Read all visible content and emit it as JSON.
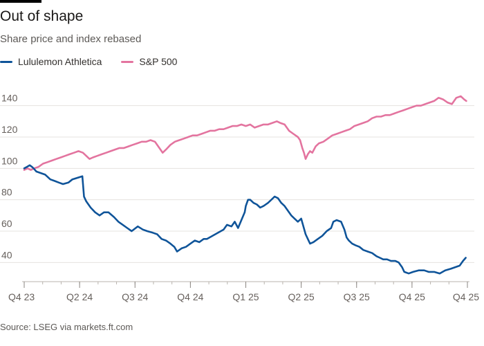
{
  "header": {
    "title": "Out of shape",
    "subtitle": "Share price and index rebased"
  },
  "legend": [
    {
      "label": "Lululemon Athletica",
      "color": "#0f5499"
    },
    {
      "label": "S&P 500",
      "color": "#e3749f"
    }
  ],
  "footer": {
    "source": "Source: LSEG via markets.ft.com"
  },
  "chart_data": {
    "type": "line",
    "title": "Out of shape",
    "subtitle": "Share price and index rebased",
    "xlabel": "",
    "ylabel": "",
    "x_unit": "quarter index (0 = Q4 23)",
    "xlim": [
      0,
      8
    ],
    "ylim": [
      30,
      150
    ],
    "yticks": [
      40,
      60,
      80,
      100,
      120,
      140
    ],
    "xticks": [
      {
        "x": 0,
        "label": "Q4 23"
      },
      {
        "x": 1,
        "label": "Q2 24"
      },
      {
        "x": 2,
        "label": "Q3 24"
      },
      {
        "x": 3,
        "label": "Q4 24"
      },
      {
        "x": 4,
        "label": "Q1 25"
      },
      {
        "x": 5,
        "label": "Q2 25"
      },
      {
        "x": 6,
        "label": "Q3 25"
      },
      {
        "x": 7,
        "label": "Q4 25"
      },
      {
        "x": 8,
        "label": "Q4 25"
      }
    ],
    "grid": true,
    "legend_position": "top-left",
    "series": [
      {
        "name": "Lululemon Athletica",
        "color": "#0f5499",
        "points": [
          [
            0.0,
            100
          ],
          [
            0.05,
            101
          ],
          [
            0.1,
            102
          ],
          [
            0.14,
            101
          ],
          [
            0.17,
            100
          ],
          [
            0.22,
            98
          ],
          [
            0.3,
            97
          ],
          [
            0.38,
            96
          ],
          [
            0.47,
            93
          ],
          [
            0.55,
            92
          ],
          [
            0.62,
            91
          ],
          [
            0.7,
            90
          ],
          [
            0.8,
            91
          ],
          [
            0.87,
            93
          ],
          [
            1.05,
            95
          ],
          [
            1.08,
            82
          ],
          [
            1.12,
            79
          ],
          [
            1.2,
            75
          ],
          [
            1.28,
            72
          ],
          [
            1.36,
            70
          ],
          [
            1.44,
            72
          ],
          [
            1.52,
            72
          ],
          [
            1.62,
            69
          ],
          [
            1.7,
            66
          ],
          [
            1.78,
            64
          ],
          [
            1.86,
            62
          ],
          [
            1.94,
            60
          ],
          [
            2.05,
            63
          ],
          [
            2.14,
            61
          ],
          [
            2.22,
            60
          ],
          [
            2.32,
            59
          ],
          [
            2.4,
            58
          ],
          [
            2.48,
            55
          ],
          [
            2.56,
            54
          ],
          [
            2.64,
            52
          ],
          [
            2.71,
            50
          ],
          [
            2.76,
            47
          ],
          [
            2.84,
            49
          ],
          [
            2.92,
            50
          ],
          [
            3.0,
            52
          ],
          [
            3.08,
            54
          ],
          [
            3.16,
            53
          ],
          [
            3.24,
            55
          ],
          [
            3.3,
            55
          ],
          [
            3.4,
            57
          ],
          [
            3.5,
            59
          ],
          [
            3.6,
            61
          ],
          [
            3.66,
            64
          ],
          [
            3.74,
            63
          ],
          [
            3.8,
            66
          ],
          [
            3.86,
            62
          ],
          [
            3.92,
            67
          ],
          [
            3.98,
            72
          ],
          [
            4.0,
            76
          ],
          [
            4.04,
            80
          ],
          [
            4.08,
            80
          ],
          [
            4.14,
            78
          ],
          [
            4.2,
            77
          ],
          [
            4.26,
            75
          ],
          [
            4.32,
            76
          ],
          [
            4.4,
            78
          ],
          [
            4.46,
            80
          ],
          [
            4.52,
            82
          ],
          [
            4.58,
            81
          ],
          [
            4.64,
            78
          ],
          [
            4.7,
            76
          ],
          [
            4.76,
            73
          ],
          [
            4.82,
            70
          ],
          [
            4.88,
            68
          ],
          [
            4.94,
            66
          ],
          [
            5.0,
            68
          ],
          [
            5.04,
            63
          ],
          [
            5.08,
            58
          ],
          [
            5.12,
            55
          ],
          [
            5.16,
            52
          ],
          [
            5.22,
            53
          ],
          [
            5.3,
            55
          ],
          [
            5.38,
            57
          ],
          [
            5.46,
            60
          ],
          [
            5.54,
            62
          ],
          [
            5.58,
            66
          ],
          [
            5.64,
            67
          ],
          [
            5.72,
            66
          ],
          [
            5.78,
            61
          ],
          [
            5.82,
            56
          ],
          [
            5.86,
            54
          ],
          [
            5.92,
            52
          ],
          [
            5.98,
            51
          ],
          [
            6.05,
            50
          ],
          [
            6.12,
            48
          ],
          [
            6.2,
            47
          ],
          [
            6.28,
            46
          ],
          [
            6.36,
            44
          ],
          [
            6.42,
            43
          ],
          [
            6.48,
            42
          ],
          [
            6.55,
            42
          ],
          [
            6.62,
            41
          ],
          [
            6.7,
            41
          ],
          [
            6.76,
            40
          ],
          [
            6.82,
            37
          ],
          [
            6.86,
            34
          ],
          [
            6.94,
            33
          ],
          [
            7.02,
            34
          ],
          [
            7.12,
            35
          ],
          [
            7.22,
            35
          ],
          [
            7.3,
            34
          ],
          [
            7.4,
            34
          ],
          [
            7.5,
            33
          ],
          [
            7.6,
            35
          ],
          [
            7.7,
            36
          ],
          [
            7.78,
            37
          ],
          [
            7.86,
            38
          ],
          [
            7.92,
            41
          ],
          [
            7.97,
            43
          ]
        ]
      },
      {
        "name": "S&P 500",
        "color": "#e3749f",
        "points": [
          [
            0.0,
            99
          ],
          [
            0.06,
            100
          ],
          [
            0.12,
            99
          ],
          [
            0.18,
            100
          ],
          [
            0.26,
            101
          ],
          [
            0.34,
            103
          ],
          [
            0.42,
            104
          ],
          [
            0.5,
            105
          ],
          [
            0.58,
            106
          ],
          [
            0.66,
            107
          ],
          [
            0.74,
            108
          ],
          [
            0.82,
            109
          ],
          [
            0.9,
            110
          ],
          [
            0.98,
            111
          ],
          [
            1.06,
            110
          ],
          [
            1.12,
            108
          ],
          [
            1.18,
            106
          ],
          [
            1.24,
            107
          ],
          [
            1.32,
            108
          ],
          [
            1.4,
            109
          ],
          [
            1.48,
            110
          ],
          [
            1.56,
            111
          ],
          [
            1.64,
            112
          ],
          [
            1.72,
            113
          ],
          [
            1.8,
            113
          ],
          [
            1.88,
            114
          ],
          [
            1.96,
            115
          ],
          [
            2.04,
            116
          ],
          [
            2.12,
            117
          ],
          [
            2.2,
            117
          ],
          [
            2.28,
            118
          ],
          [
            2.36,
            117
          ],
          [
            2.44,
            113
          ],
          [
            2.5,
            110
          ],
          [
            2.56,
            112
          ],
          [
            2.64,
            115
          ],
          [
            2.72,
            117
          ],
          [
            2.8,
            118
          ],
          [
            2.88,
            119
          ],
          [
            2.96,
            120
          ],
          [
            3.04,
            121
          ],
          [
            3.12,
            121
          ],
          [
            3.2,
            122
          ],
          [
            3.28,
            123
          ],
          [
            3.36,
            124
          ],
          [
            3.44,
            124
          ],
          [
            3.52,
            125
          ],
          [
            3.6,
            125
          ],
          [
            3.68,
            126
          ],
          [
            3.76,
            127
          ],
          [
            3.84,
            127
          ],
          [
            3.92,
            128
          ],
          [
            4.0,
            127
          ],
          [
            4.08,
            128
          ],
          [
            4.16,
            126
          ],
          [
            4.24,
            127
          ],
          [
            4.32,
            128
          ],
          [
            4.4,
            128
          ],
          [
            4.48,
            129
          ],
          [
            4.56,
            130
          ],
          [
            4.62,
            129
          ],
          [
            4.7,
            128
          ],
          [
            4.78,
            124
          ],
          [
            4.86,
            122
          ],
          [
            4.94,
            120
          ],
          [
            4.98,
            118
          ],
          [
            5.02,
            113
          ],
          [
            5.05,
            110
          ],
          [
            5.08,
            106
          ],
          [
            5.12,
            109
          ],
          [
            5.16,
            111
          ],
          [
            5.2,
            110
          ],
          [
            5.26,
            114
          ],
          [
            5.32,
            116
          ],
          [
            5.4,
            117
          ],
          [
            5.48,
            119
          ],
          [
            5.56,
            121
          ],
          [
            5.64,
            122
          ],
          [
            5.72,
            123
          ],
          [
            5.8,
            124
          ],
          [
            5.88,
            125
          ],
          [
            5.96,
            127
          ],
          [
            6.04,
            128
          ],
          [
            6.12,
            129
          ],
          [
            6.2,
            130
          ],
          [
            6.28,
            132
          ],
          [
            6.36,
            133
          ],
          [
            6.44,
            133
          ],
          [
            6.52,
            134
          ],
          [
            6.6,
            134
          ],
          [
            6.68,
            135
          ],
          [
            6.76,
            136
          ],
          [
            6.84,
            137
          ],
          [
            6.92,
            138
          ],
          [
            7.0,
            139
          ],
          [
            7.08,
            140
          ],
          [
            7.16,
            140
          ],
          [
            7.24,
            141
          ],
          [
            7.32,
            142
          ],
          [
            7.4,
            143
          ],
          [
            7.48,
            145
          ],
          [
            7.56,
            144
          ],
          [
            7.64,
            142
          ],
          [
            7.72,
            141
          ],
          [
            7.8,
            145
          ],
          [
            7.88,
            146
          ],
          [
            7.94,
            144
          ],
          [
            7.98,
            143
          ]
        ]
      }
    ]
  }
}
